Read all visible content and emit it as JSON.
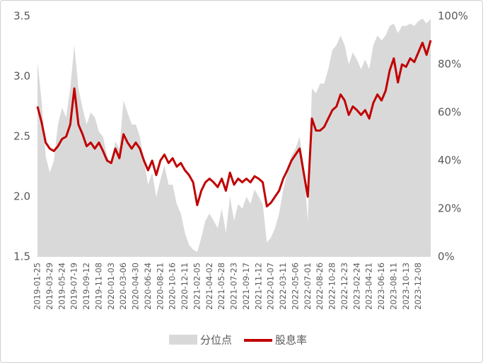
{
  "chart_data": {
    "type": "combo",
    "categories": [
      "2019-01-25",
      null,
      null,
      "2019-03-29",
      null,
      null,
      "2019-05-24",
      null,
      null,
      "2019-07-19",
      null,
      null,
      "2019-09-12",
      null,
      null,
      "2019-11-08",
      null,
      null,
      "2020-01-03",
      null,
      null,
      "2020-03-06",
      null,
      null,
      "2020-04-30",
      null,
      null,
      "2020-06-24",
      null,
      null,
      "2020-08-21",
      null,
      null,
      "2020-10-16",
      null,
      null,
      "2020-12-11",
      null,
      null,
      "2021-02-05",
      null,
      null,
      "2021-04-02",
      null,
      null,
      "2021-05-28",
      null,
      null,
      "2021-07-23",
      null,
      null,
      "2021-09-17",
      null,
      null,
      "2021-11-12",
      null,
      null,
      "2022-01-07",
      null,
      null,
      "2022-03-11",
      null,
      null,
      "2022-05-06",
      null,
      null,
      "2022-07-01",
      null,
      null,
      "2022-08-26",
      null,
      null,
      "2022-10-28",
      null,
      null,
      "2022-12-23",
      null,
      null,
      "2023-02-24",
      null,
      null,
      "2023-04-21",
      null,
      null,
      "2023-06-16",
      null,
      null,
      "2023-08-11",
      null,
      null,
      "2023-10-13",
      null,
      null,
      "2023-12-08",
      null,
      null,
      null
    ],
    "series": [
      {
        "name": "分位点",
        "type": "area",
        "axis": "y2",
        "color": "#d9d9d9",
        "values": [
          81,
          65,
          42,
          35,
          40,
          55,
          62,
          58,
          70,
          88,
          70,
          62,
          55,
          60,
          58,
          52,
          50,
          42,
          38,
          48,
          45,
          65,
          60,
          55,
          55,
          50,
          40,
          30,
          35,
          25,
          32,
          38,
          30,
          30,
          22,
          18,
          10,
          5,
          3,
          2,
          8,
          15,
          18,
          15,
          12,
          20,
          10,
          25,
          15,
          22,
          20,
          25,
          22,
          28,
          25,
          22,
          6,
          8,
          12,
          18,
          28,
          35,
          42,
          45,
          50,
          38,
          15,
          70,
          68,
          72,
          72,
          78,
          86,
          88,
          92,
          88,
          80,
          85,
          82,
          78,
          82,
          78,
          88,
          92,
          90,
          92,
          96,
          97,
          93,
          96,
          96,
          97,
          96,
          98,
          99,
          97,
          99
        ]
      },
      {
        "name": "股息率",
        "type": "line",
        "color": "#c00000",
        "values": [
          2.75,
          2.62,
          2.45,
          2.4,
          2.38,
          2.42,
          2.48,
          2.5,
          2.6,
          2.9,
          2.6,
          2.52,
          2.42,
          2.45,
          2.4,
          2.45,
          2.38,
          2.3,
          2.28,
          2.4,
          2.32,
          2.52,
          2.45,
          2.4,
          2.45,
          2.4,
          2.3,
          2.22,
          2.3,
          2.18,
          2.3,
          2.35,
          2.28,
          2.32,
          2.25,
          2.28,
          2.22,
          2.18,
          2.12,
          1.93,
          2.05,
          2.12,
          2.15,
          2.12,
          2.08,
          2.15,
          2.05,
          2.2,
          2.1,
          2.15,
          2.12,
          2.15,
          2.12,
          2.17,
          2.15,
          2.12,
          1.92,
          1.95,
          2.0,
          2.05,
          2.15,
          2.22,
          2.3,
          2.35,
          2.4,
          2.2,
          2.0,
          2.65,
          2.55,
          2.55,
          2.58,
          2.65,
          2.72,
          2.75,
          2.85,
          2.8,
          2.68,
          2.75,
          2.72,
          2.68,
          2.72,
          2.65,
          2.78,
          2.85,
          2.8,
          2.88,
          3.05,
          3.15,
          2.95,
          3.1,
          3.08,
          3.15,
          3.12,
          3.2,
          3.28,
          3.18,
          3.3
        ]
      }
    ],
    "ylim": [
      1.5,
      3.5
    ],
    "yticks": [
      1.5,
      {
        "value": 2,
        "label": "2.0"
      },
      2.5,
      {
        "value": 3,
        "label": "3.0"
      },
      3.5
    ],
    "y2lim": [
      0,
      100
    ],
    "y2ticks": [
      {
        "value": 0,
        "label": "0%"
      },
      {
        "value": 20,
        "label": "20%"
      },
      {
        "value": 40,
        "label": "40%"
      },
      {
        "value": 60,
        "label": "60%"
      },
      {
        "value": 80,
        "label": "80%"
      },
      {
        "value": 100,
        "label": "100%"
      }
    ],
    "legend": "bottom"
  }
}
